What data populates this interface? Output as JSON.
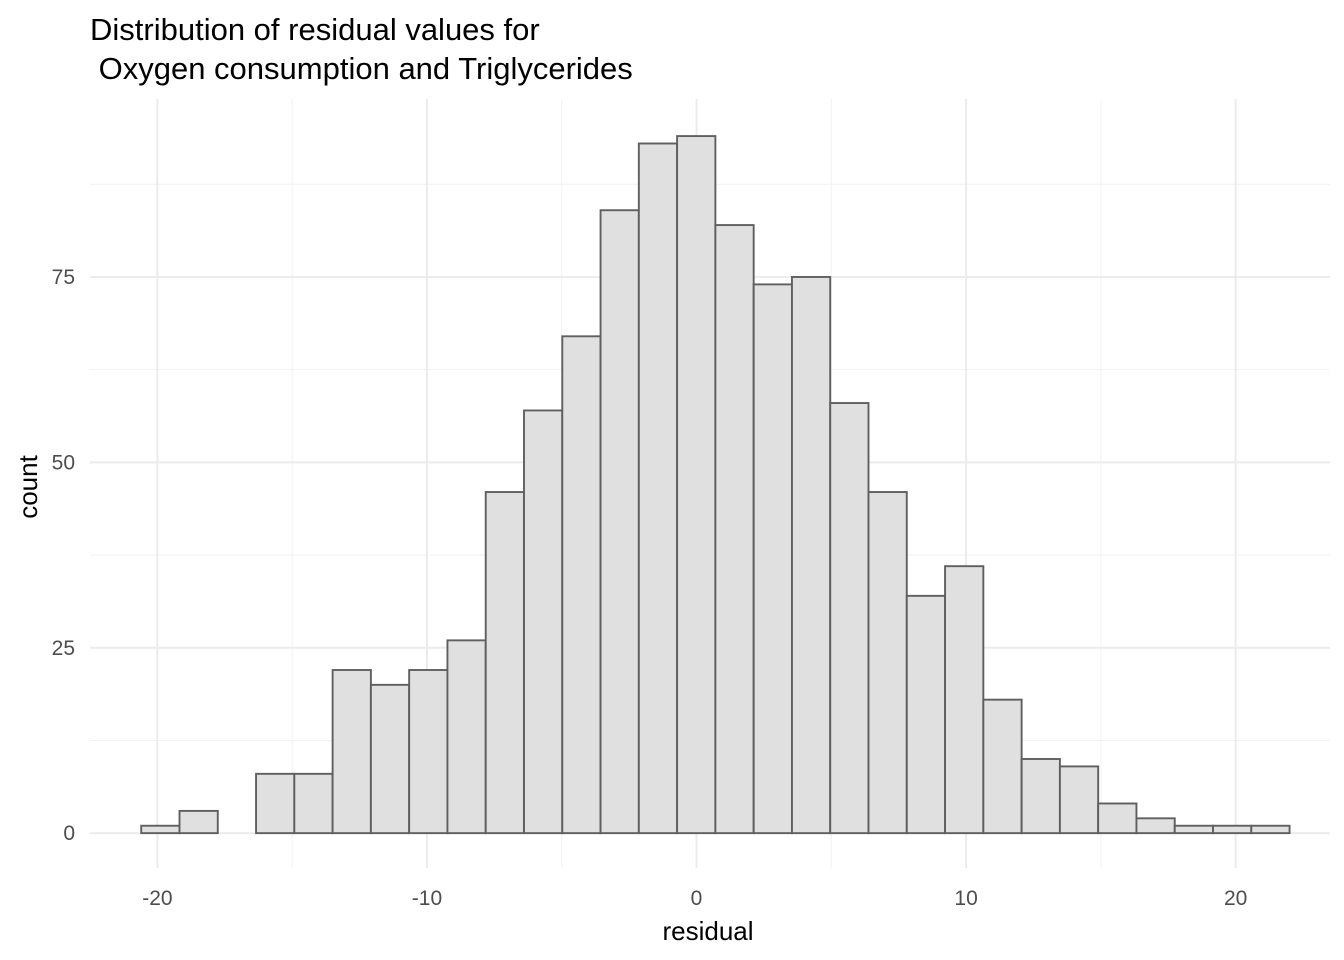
{
  "chart_data": {
    "type": "histogram",
    "title_line1": "Distribution of residual values for",
    "title_line2": " Oxygen consumption and Triglycerides",
    "xlabel": "residual",
    "ylabel": "count",
    "xlim": [
      -22.5,
      23.5
    ],
    "ylim": [
      -4.7,
      99
    ],
    "x_ticks": [
      -20,
      -10,
      0,
      10,
      20
    ],
    "x_tick_labels": [
      "-20",
      "-10",
      "0",
      "10",
      "20"
    ],
    "y_ticks": [
      0,
      25,
      50,
      75
    ],
    "y_tick_labels": [
      "0",
      "25",
      "50",
      "75"
    ],
    "x_minor_ticks": [
      -15,
      -5,
      5,
      15
    ],
    "y_minor_ticks": [
      12.5,
      37.5,
      62.5,
      87.5
    ],
    "bin_width": 1.42,
    "bins": [
      {
        "x0": -20.6,
        "count": 1
      },
      {
        "x0": -19.18,
        "count": 3
      },
      {
        "x0": -17.76,
        "count": 0
      },
      {
        "x0": -16.34,
        "count": 8
      },
      {
        "x0": -14.92,
        "count": 8
      },
      {
        "x0": -13.5,
        "count": 22
      },
      {
        "x0": -12.08,
        "count": 20
      },
      {
        "x0": -10.66,
        "count": 22
      },
      {
        "x0": -9.24,
        "count": 26
      },
      {
        "x0": -7.82,
        "count": 46
      },
      {
        "x0": -6.4,
        "count": 57
      },
      {
        "x0": -4.98,
        "count": 67
      },
      {
        "x0": -3.56,
        "count": 84
      },
      {
        "x0": -2.14,
        "count": 93
      },
      {
        "x0": -0.72,
        "count": 94
      },
      {
        "x0": 0.7,
        "count": 82
      },
      {
        "x0": 2.12,
        "count": 74
      },
      {
        "x0": 3.54,
        "count": 75
      },
      {
        "x0": 4.96,
        "count": 58
      },
      {
        "x0": 6.38,
        "count": 46
      },
      {
        "x0": 7.8,
        "count": 32
      },
      {
        "x0": 9.22,
        "count": 36
      },
      {
        "x0": 10.64,
        "count": 18
      },
      {
        "x0": 12.06,
        "count": 10
      },
      {
        "x0": 13.48,
        "count": 9
      },
      {
        "x0": 14.9,
        "count": 4
      },
      {
        "x0": 16.32,
        "count": 2
      },
      {
        "x0": 17.74,
        "count": 1
      },
      {
        "x0": 19.16,
        "count": 1
      },
      {
        "x0": 20.58,
        "count": 1
      }
    ],
    "grid": true,
    "legend": "none",
    "colors": {
      "bar_fill": "#e0e0e0",
      "bar_stroke": "#5f5f5f",
      "grid_major": "#ebebeb",
      "grid_minor": "#f2f2f2",
      "tick_text": "#4d4d4d",
      "text": "#000000",
      "background": "#ffffff"
    }
  }
}
